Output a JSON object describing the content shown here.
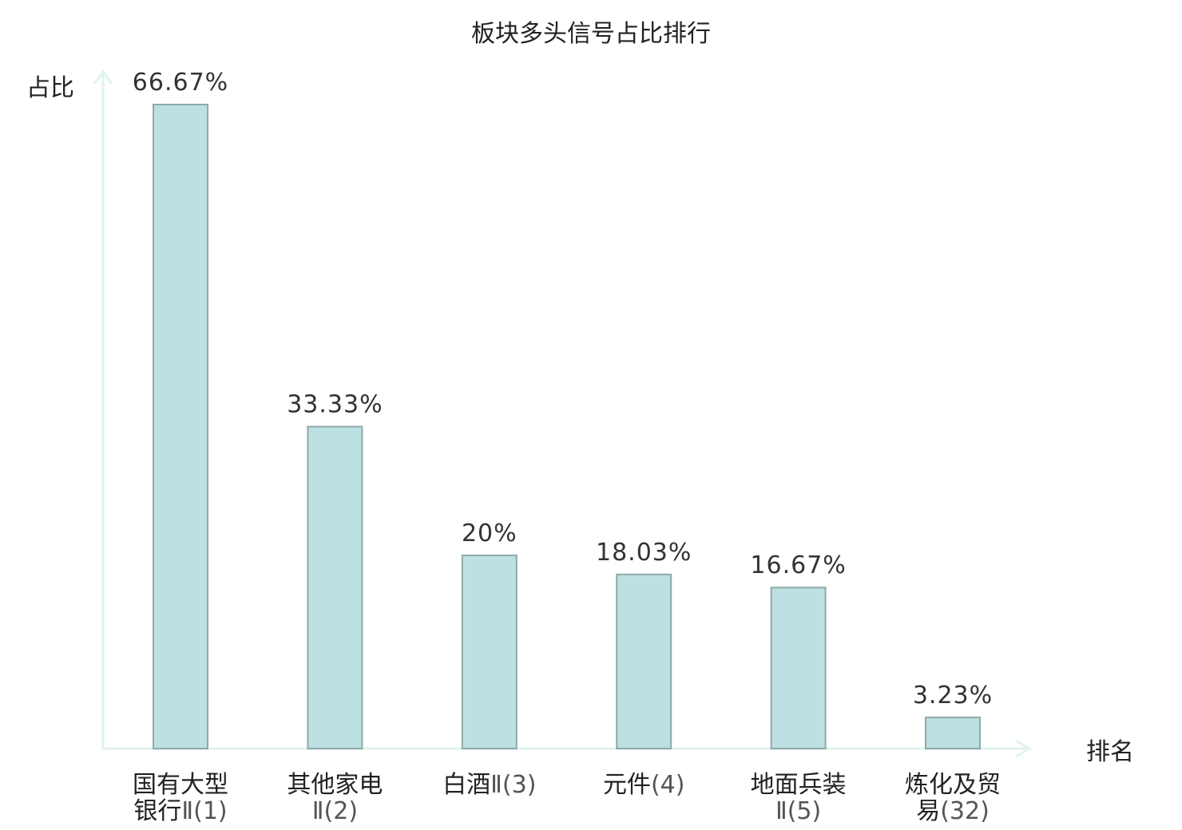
{
  "chart_data": {
    "type": "bar",
    "title": "板块多头信号占比排行",
    "xlabel": "排名",
    "ylabel": "占比",
    "ylim": [
      0,
      70
    ],
    "grid": false,
    "categories": [
      {
        "lines": [
          "国有大型",
          "银行",
          "Ⅱ(1)"
        ],
        "line_layout": [
          [
            0
          ],
          [
            1,
            2
          ]
        ],
        "highlight": false
      },
      {
        "lines": [
          "其他家电",
          "Ⅱ(2)"
        ],
        "line_layout": [
          [
            0
          ],
          [
            1
          ]
        ],
        "highlight": false
      },
      {
        "lines": [
          "白酒",
          "Ⅱ(3)"
        ],
        "line_layout": [
          [
            0,
            1
          ]
        ],
        "highlight": false
      },
      {
        "lines": [
          "元件",
          "(4)"
        ],
        "line_layout": [
          [
            0,
            1
          ]
        ],
        "highlight": false
      },
      {
        "lines": [
          "地面兵装",
          "Ⅱ(5)"
        ],
        "line_layout": [
          [
            0
          ],
          [
            1
          ]
        ],
        "highlight": false
      },
      {
        "lines": [
          "炼化及贸",
          "易",
          "(32)"
        ],
        "line_layout": [
          [
            0
          ],
          [
            1,
            2
          ]
        ],
        "highlight": true
      }
    ],
    "values": [
      66.67,
      33.33,
      20,
      18.03,
      16.67,
      3.23
    ],
    "value_labels": [
      "66.67%",
      "33.33%",
      "20%",
      "18.03%",
      "16.67%",
      "3.23%"
    ],
    "colors": {
      "bar_fill": "#bde0e2",
      "bar_stroke": "#8fa9aa",
      "axis": "#e0f3f0",
      "text": "#222222",
      "highlight": "#e01010"
    }
  }
}
